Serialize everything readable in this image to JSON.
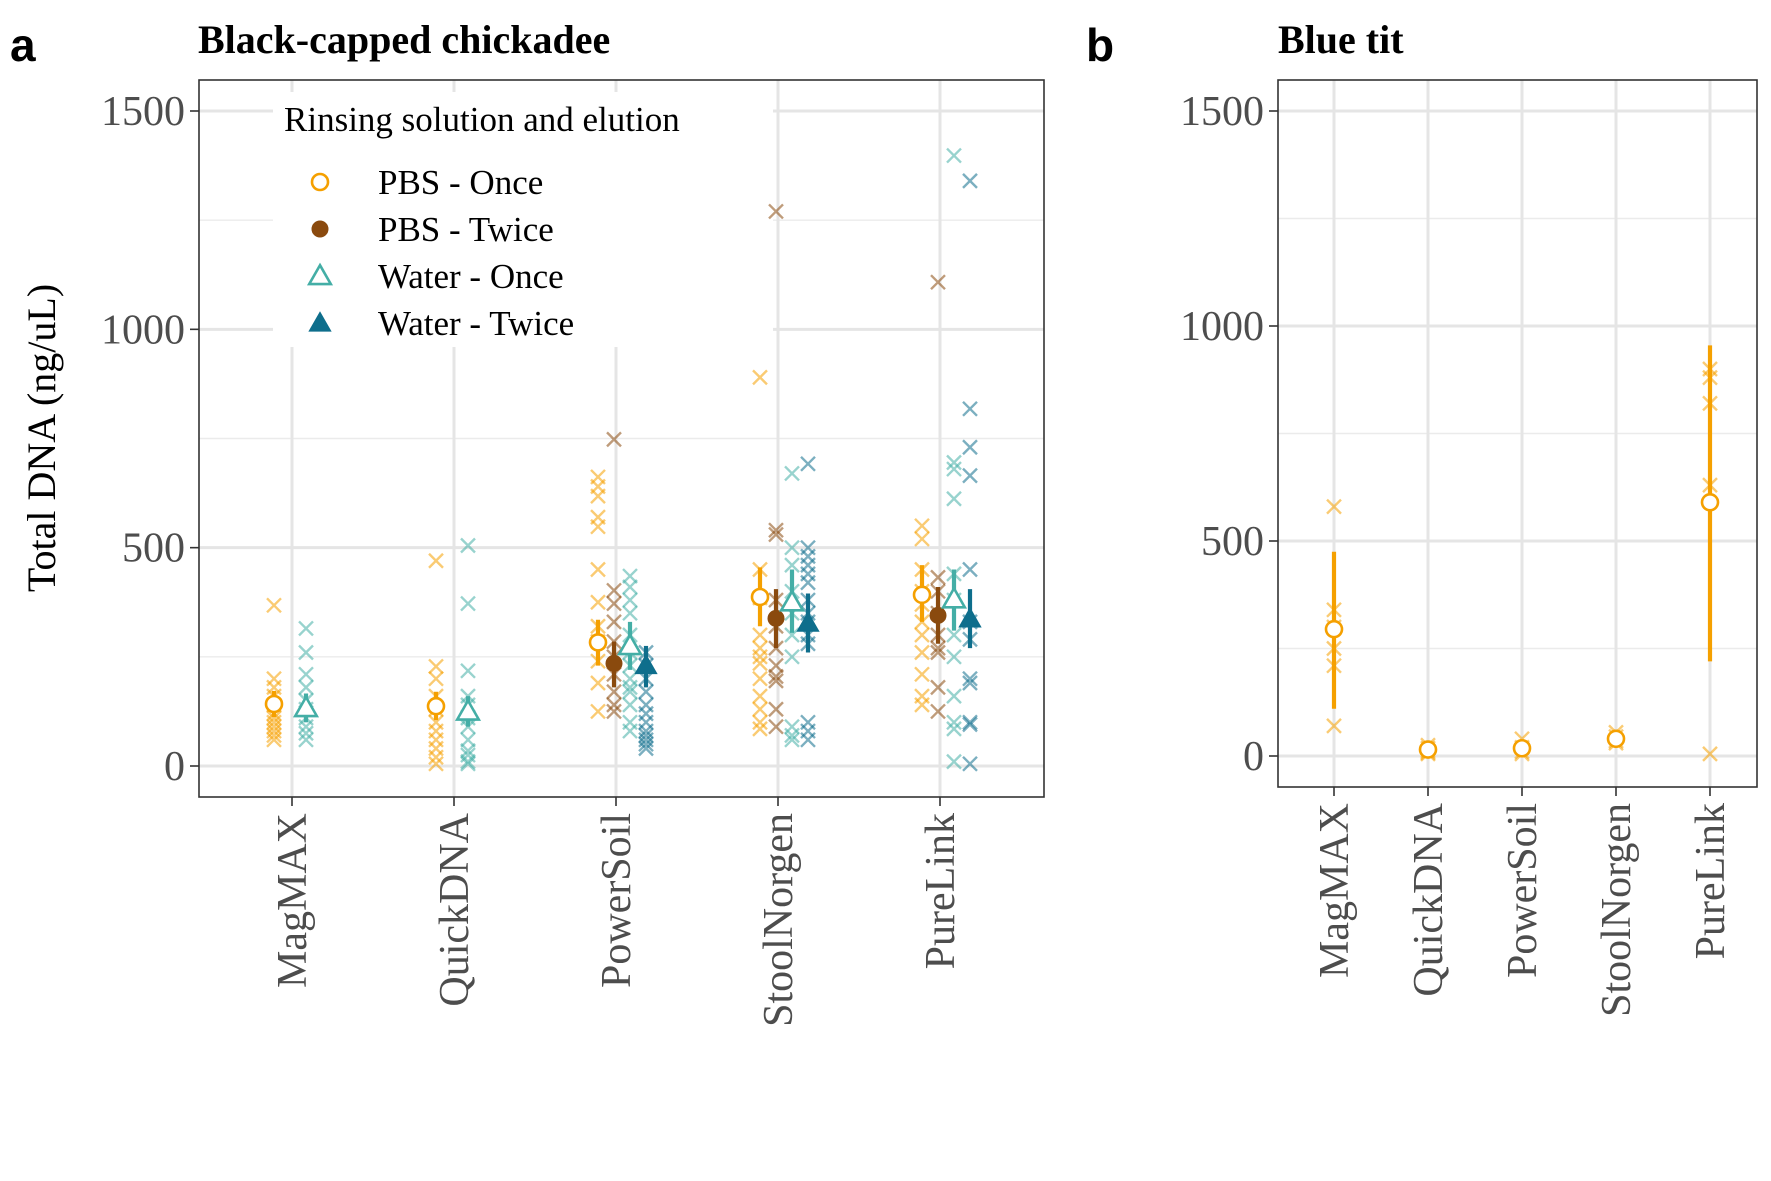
{
  "figure": {
    "panel_a_letter": "a",
    "panel_b_letter": "b",
    "y_axis_title": "Total DNA (ng/uL)"
  },
  "colors": {
    "PBS - Once": "#F5A000",
    "PBS - Twice": "#8A4A0E",
    "Water - Once": "#44AEA6",
    "Water - Twice": "#0E6E8C"
  },
  "chart_data": [
    {
      "type": "scatter",
      "title": "Black-capped chickadee",
      "xlabel": "",
      "ylabel": "Total DNA (ng/uL)",
      "ylim": [
        -70,
        1570
      ],
      "yticks": [
        0,
        500,
        1000,
        1500
      ],
      "grid": true,
      "categories": [
        "MagMAX",
        "QuickDNA",
        "PowerSoil",
        "StoolNorgen",
        "PureLink"
      ],
      "legend": {
        "title": "Rinsing solution and elution",
        "placement": "top-left",
        "entries": [
          "PBS - Once",
          "PBS - Twice",
          "Water - Once",
          "Water - Twice"
        ]
      },
      "series": [
        {
          "name": "PBS - Once",
          "marker": "open-circle",
          "points": [
            {
              "category": "MagMAX",
              "mean": 142,
              "lower": 112,
              "upper": 172,
              "samples": [
                368,
                200,
                180,
                160,
                140,
                120,
                110,
                100,
                90,
                80,
                70,
                60
              ]
            },
            {
              "category": "QuickDNA",
              "mean": 137,
              "lower": 105,
              "upper": 170,
              "samples": [
                470,
                228,
                200,
                160,
                130,
                100,
                80,
                60,
                40,
                20,
                5
              ]
            },
            {
              "category": "PowerSoil",
              "mean": 283,
              "lower": 230,
              "upper": 335,
              "samples": [
                662,
                640,
                618,
                570,
                548,
                450,
                375,
                320,
                285,
                240,
                190,
                125
              ]
            },
            {
              "category": "StoolNorgen",
              "mean": 387,
              "lower": 320,
              "upper": 455,
              "samples": [
                890,
                450,
                385,
                300,
                270,
                250,
                235,
                200,
                160,
                130,
                100,
                85
              ]
            },
            {
              "category": "PureLink",
              "mean": 392,
              "lower": 330,
              "upper": 460,
              "samples": [
                550,
                520,
                450,
                400,
                370,
                330,
                300,
                260,
                210,
                160,
                140
              ]
            }
          ]
        },
        {
          "name": "PBS - Twice",
          "marker": "filled-circle",
          "points": [
            {
              "category": "PowerSoil",
              "mean": 235,
              "lower": 180,
              "upper": 285,
              "samples": [
                748,
                402,
                372,
                330,
                285,
                250,
                210,
                170,
                140,
                125
              ]
            },
            {
              "category": "StoolNorgen",
              "mean": 338,
              "lower": 270,
              "upper": 405,
              "samples": [
                1270,
                540,
                530,
                380,
                320,
                270,
                230,
                205,
                195,
                130,
                90
              ]
            },
            {
              "category": "PureLink",
              "mean": 345,
              "lower": 280,
              "upper": 410,
              "samples": [
                1108,
                432,
                400,
                350,
                300,
                270,
                260,
                180,
                125
              ]
            }
          ]
        },
        {
          "name": "Water - Once",
          "marker": "open-triangle",
          "points": [
            {
              "category": "MagMAX",
              "mean": 133,
              "lower": 100,
              "upper": 166,
              "samples": [
                315,
                260,
                210,
                180,
                150,
                130,
                110,
                90,
                75,
                60
              ]
            },
            {
              "category": "QuickDNA",
              "mean": 125,
              "lower": 90,
              "upper": 160,
              "samples": [
                505,
                372,
                218,
                160,
                140,
                110,
                90,
                60,
                35,
                25,
                10,
                5
              ]
            },
            {
              "category": "PowerSoil",
              "mean": 275,
              "lower": 220,
              "upper": 330,
              "samples": [
                435,
                410,
                380,
                350,
                300,
                260,
                230,
                200,
                180,
                170,
                140,
                100,
                80
              ]
            },
            {
              "category": "StoolNorgen",
              "mean": 375,
              "lower": 305,
              "upper": 450,
              "samples": [
                670,
                500,
                460,
                400,
                350,
                300,
                250,
                90,
                70,
                60
              ]
            },
            {
              "category": "PureLink",
              "mean": 382,
              "lower": 310,
              "upper": 450,
              "samples": [
                1398,
                695,
                680,
                612,
                440,
                380,
                300,
                250,
                160,
                100,
                85,
                10
              ]
            }
          ]
        },
        {
          "name": "Water - Twice",
          "marker": "filled-triangle",
          "points": [
            {
              "category": "PowerSoil",
              "mean": 230,
              "lower": 180,
              "upper": 275,
              "samples": [
                260,
                230,
                200,
                170,
                140,
                120,
                100,
                80,
                70,
                60,
                50,
                40
              ]
            },
            {
              "category": "StoolNorgen",
              "mean": 327,
              "lower": 260,
              "upper": 395,
              "samples": [
                692,
                500,
                480,
                460,
                440,
                420,
                380,
                350,
                330,
                300,
                280,
                100,
                80,
                60
              ]
            },
            {
              "category": "PureLink",
              "mean": 337,
              "lower": 270,
              "upper": 405,
              "samples": [
                1340,
                818,
                730,
                665,
                450,
                330,
                290,
                200,
                190,
                100,
                95,
                5
              ]
            }
          ]
        }
      ]
    },
    {
      "type": "scatter",
      "title": "Blue tit",
      "xlabel": "",
      "ylabel": "",
      "ylim": [
        -70,
        1570
      ],
      "yticks": [
        0,
        500,
        1000,
        1500
      ],
      "grid": true,
      "categories": [
        "MagMAX",
        "QuickDNA",
        "PowerSoil",
        "StoolNorgen",
        "PureLink"
      ],
      "series": [
        {
          "name": "PBS - Once",
          "marker": "open-circle",
          "points": [
            {
              "category": "MagMAX",
              "mean": 295,
              "lower": 110,
              "upper": 475,
              "samples": [
                580,
                340,
                300,
                250,
                210,
                70
              ]
            },
            {
              "category": "QuickDNA",
              "mean": 15,
              "lower": 5,
              "upper": 25,
              "samples": [
                25,
                18,
                12,
                8,
                5
              ]
            },
            {
              "category": "PowerSoil",
              "mean": 18,
              "lower": 5,
              "upper": 30,
              "samples": [
                40,
                20,
                10,
                5
              ]
            },
            {
              "category": "StoolNorgen",
              "mean": 40,
              "lower": 30,
              "upper": 55,
              "samples": [
                55,
                45,
                35,
                30
              ]
            },
            {
              "category": "PureLink",
              "mean": 590,
              "lower": 220,
              "upper": 955,
              "samples": [
                900,
                880,
                820,
                630,
                5
              ]
            }
          ]
        }
      ]
    }
  ]
}
